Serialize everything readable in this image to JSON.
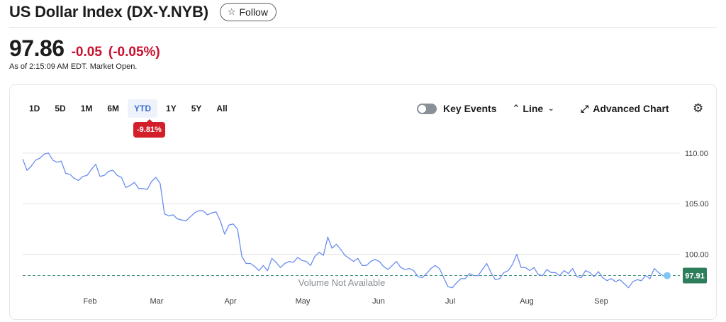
{
  "header": {
    "title": "US Dollar Index (DX-Y.NYB)",
    "follow_label": "Follow",
    "follow_icon": "star-outline-icon"
  },
  "quote": {
    "price": "97.86",
    "change": "-0.05",
    "change_pct": "(-0.05%)",
    "as_of": "As of 2:15:09 AM EDT. Market Open.",
    "change_color": "#c8102e"
  },
  "toolbar": {
    "ranges": [
      "1D",
      "5D",
      "1M",
      "6M",
      "YTD",
      "1Y",
      "5Y",
      "All"
    ],
    "active_range": "YTD",
    "ytd_badge": "-9.81%",
    "key_events_label": "Key Events",
    "chart_type_label": "Line",
    "advanced_chart_label": "Advanced Chart",
    "icons": {
      "line": "line-chart-icon",
      "chevron": "chevron-down-icon",
      "expand": "expand-arrows-icon",
      "settings": "gear-icon"
    }
  },
  "chart_data": {
    "type": "line",
    "title": "",
    "xlabel": "",
    "ylabel": "",
    "months": [
      "Feb",
      "Mar",
      "Apr",
      "May",
      "Jun",
      "Jul",
      "Aug",
      "Sep"
    ],
    "yticks": [
      "110.00",
      "105.00",
      "100.00"
    ],
    "ylim": [
      95.0,
      111.6
    ],
    "last_value": 97.91,
    "last_label": "97.91",
    "volume_label": "Volume Not Available",
    "line_color": "#6a8ef0",
    "last_badge_color": "#2e7d5b",
    "grid": true,
    "series": [
      {
        "values": [
          109.4,
          108.3,
          108.7,
          109.3,
          109.5,
          109.9,
          110.0,
          109.3,
          109.1,
          109.2,
          108.0,
          107.9,
          107.5,
          107.3,
          107.7,
          107.8,
          108.4,
          108.9,
          107.7,
          107.8,
          108.2,
          108.3,
          107.8,
          107.6,
          106.6,
          106.8,
          107.1,
          106.5,
          106.5,
          106.4,
          107.2,
          107.6,
          107.0,
          104.0,
          103.8,
          103.9,
          103.5,
          103.4,
          103.3,
          103.7,
          104.1,
          104.3,
          104.3,
          103.9,
          104.1,
          104.2,
          103.3,
          102.0,
          102.9,
          103.0,
          102.5,
          99.8,
          99.1,
          99.1,
          98.8,
          98.4,
          98.9,
          98.4,
          99.6,
          99.2,
          98.7,
          99.1,
          99.3,
          99.2,
          99.7,
          99.4,
          99.3,
          98.9,
          99.8,
          100.2,
          99.9,
          101.7,
          100.6,
          101.0,
          100.5,
          99.9,
          99.6,
          99.3,
          99.6,
          98.9,
          98.9,
          99.3,
          99.5,
          99.3,
          98.8,
          98.5,
          98.9,
          99.3,
          98.7,
          98.5,
          98.6,
          98.4,
          97.8,
          97.7,
          98.1,
          98.6,
          98.9,
          98.6,
          97.7,
          96.8,
          96.7,
          97.2,
          97.6,
          97.6,
          98.1,
          97.9,
          97.9,
          98.5,
          99.1,
          98.2,
          97.5,
          97.6,
          98.2,
          98.4,
          99.0,
          100.0,
          98.7,
          98.7,
          98.4,
          98.7,
          98.0,
          97.9,
          98.5,
          98.2,
          98.2,
          97.9,
          98.4,
          98.1,
          98.6,
          97.8,
          97.7,
          98.4,
          98.2,
          97.8,
          98.3,
          97.7,
          97.4,
          97.6,
          97.3,
          97.5,
          97.1,
          96.7,
          97.3,
          97.5,
          97.4,
          97.9,
          97.6,
          98.6,
          98.2,
          97.9,
          97.9
        ]
      }
    ]
  }
}
